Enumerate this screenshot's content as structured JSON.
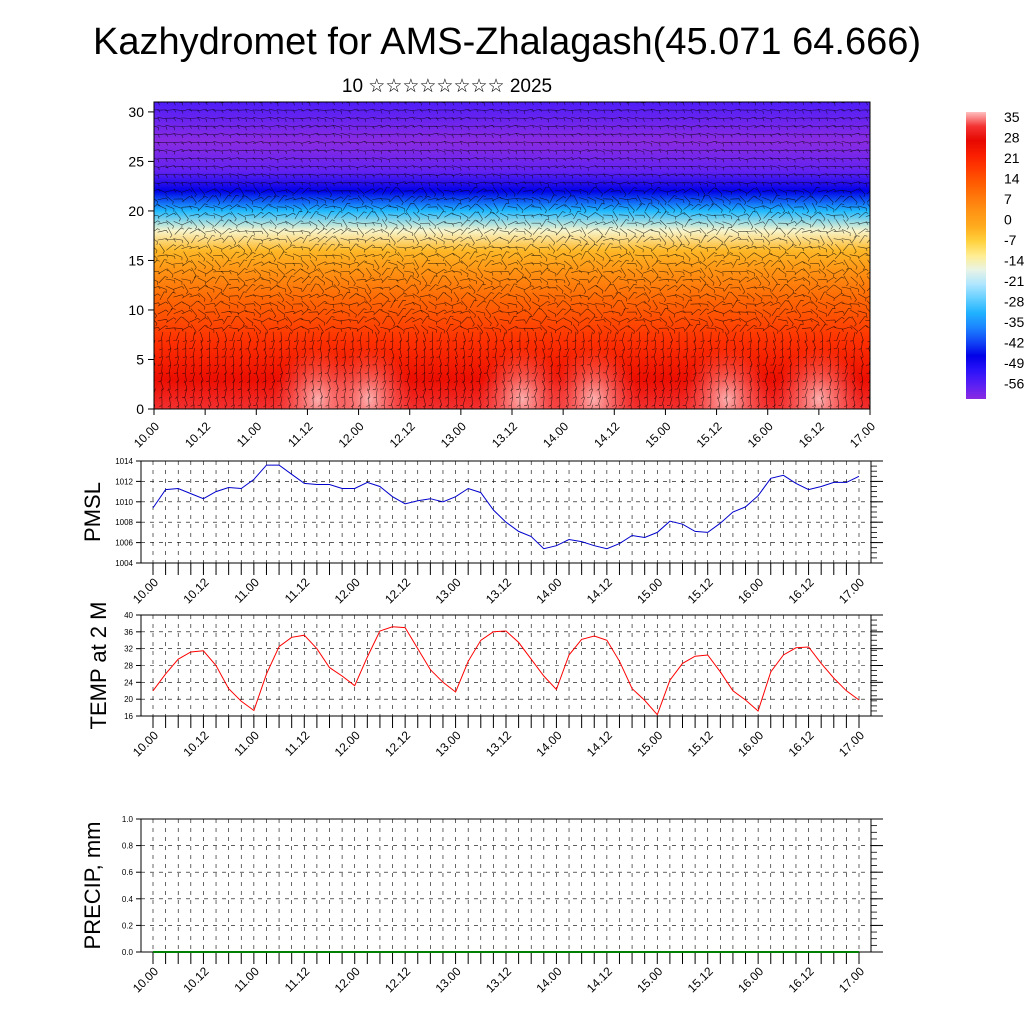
{
  "title": "Kazhydromet for AMS-Zhalagash(45.071 64.666)",
  "subtitle": "10 ☆☆☆☆☆☆☆☆ 2025",
  "time_labels": [
    "10.00",
    "10.12",
    "11.00",
    "11.12",
    "12.00",
    "12.12",
    "13.00",
    "13.12",
    "14.00",
    "14.12",
    "15.00",
    "15.12",
    "16.00",
    "16.12",
    "17.00"
  ],
  "chart_data": [
    {
      "type": "heatmap",
      "name": "vertical-section",
      "y_ticks": [
        0,
        5,
        10,
        15,
        20,
        25,
        30
      ],
      "ylim": [
        0,
        31
      ],
      "colorbar": {
        "labels": [
          "35",
          "28",
          "21",
          "14",
          "7",
          "0",
          "-7",
          "-14",
          "-21",
          "-28",
          "-35",
          "-42",
          "-49",
          "-56"
        ],
        "range": [
          -60,
          38
        ]
      },
      "temperature_profile": {
        "levels": [
          0,
          3,
          7,
          11,
          14,
          16,
          18,
          20,
          22,
          24,
          27,
          31
        ],
        "values": [
          33,
          27,
          20,
          12,
          4,
          -3,
          -14,
          -30,
          -45,
          -56,
          -60,
          -54
        ]
      },
      "surface_warm_peaks_x": [
        11.6,
        12.1,
        13.6,
        14.3,
        15.6,
        16.5
      ]
    },
    {
      "type": "line",
      "name": "pmsl",
      "ylabel": "PMSL",
      "ylim": [
        1004,
        1014
      ],
      "y_ticks": [
        1004,
        1006,
        1008,
        1010,
        1012,
        1014
      ],
      "color": "#0000cc",
      "values": [
        1009.4,
        1011.2,
        1011.3,
        1010.8,
        1010.3,
        1011.0,
        1011.4,
        1011.3,
        1012.2,
        1013.6,
        1013.6,
        1012.7,
        1011.8,
        1011.7,
        1011.7,
        1011.3,
        1011.3,
        1011.9,
        1011.5,
        1010.5,
        1009.8,
        1010.1,
        1010.3,
        1010.0,
        1010.5,
        1011.3,
        1010.9,
        1009.2,
        1008.0,
        1007.1,
        1006.6,
        1005.4,
        1005.7,
        1006.3,
        1006.1,
        1005.7,
        1005.4,
        1005.9,
        1006.7,
        1006.5,
        1007.0,
        1008.1,
        1007.8,
        1007.1,
        1007.0,
        1007.9,
        1009.0,
        1009.5,
        1010.6,
        1012.3,
        1012.6,
        1011.8,
        1011.2,
        1011.5,
        1011.9,
        1011.9,
        1012.5
      ]
    },
    {
      "type": "line",
      "name": "temp2m",
      "ylabel": "TEMP at 2 M",
      "ylim": [
        16,
        40
      ],
      "y_ticks": [
        16,
        20,
        24,
        28,
        32,
        36,
        40
      ],
      "color": "#ff0000",
      "values": [
        22.0,
        26.0,
        29.5,
        31.2,
        31.5,
        28.0,
        22.5,
        19.5,
        17.3,
        26.0,
        32.5,
        34.7,
        35.2,
        32.0,
        27.5,
        25.5,
        23.2,
        30.0,
        36.2,
        37.2,
        37.0,
        32.0,
        27.0,
        24.0,
        21.7,
        29.0,
        34.0,
        36.0,
        36.2,
        33.5,
        29.5,
        25.5,
        22.3,
        30.5,
        34.2,
        35.0,
        34.0,
        29.0,
        22.5,
        19.7,
        16.3,
        24.5,
        28.5,
        30.2,
        30.5,
        26.5,
        22.0,
        19.8,
        17.2,
        26.5,
        30.5,
        32.2,
        32.4,
        28.5,
        25.0,
        22.0,
        19.8
      ]
    },
    {
      "type": "line",
      "name": "precip",
      "ylabel": "PRECIP, mm",
      "ylim": [
        0,
        1
      ],
      "y_ticks": [
        "0.0",
        "0.2",
        "0.4",
        "0.6",
        "0.8",
        "1.0"
      ],
      "color": "#008000",
      "values": [
        0,
        0,
        0,
        0,
        0,
        0,
        0,
        0,
        0,
        0,
        0,
        0,
        0,
        0,
        0,
        0,
        0,
        0,
        0,
        0,
        0,
        0,
        0,
        0,
        0,
        0,
        0,
        0,
        0,
        0,
        0,
        0,
        0,
        0,
        0,
        0,
        0,
        0,
        0,
        0,
        0,
        0,
        0,
        0,
        0,
        0,
        0,
        0,
        0,
        0,
        0,
        0,
        0,
        0,
        0,
        0,
        0
      ]
    }
  ]
}
